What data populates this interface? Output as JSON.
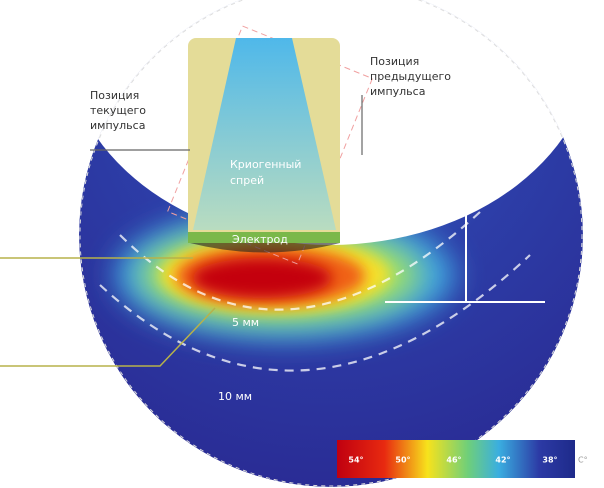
{
  "labels": {
    "current_pulse": [
      "Позиция",
      "текущего",
      "импульса"
    ],
    "previous_pulse": [
      "Позиция",
      "предыдущего",
      "импульса"
    ],
    "cryogen_spray": [
      "Криогенный",
      "спрей"
    ],
    "electrode": "Электрод",
    "depth_5": "5 мм",
    "depth_10": "10 мм"
  },
  "legend": {
    "ticks": [
      "54°",
      "50°",
      "46°",
      "42°",
      "38°"
    ],
    "unit": "C°"
  }
}
